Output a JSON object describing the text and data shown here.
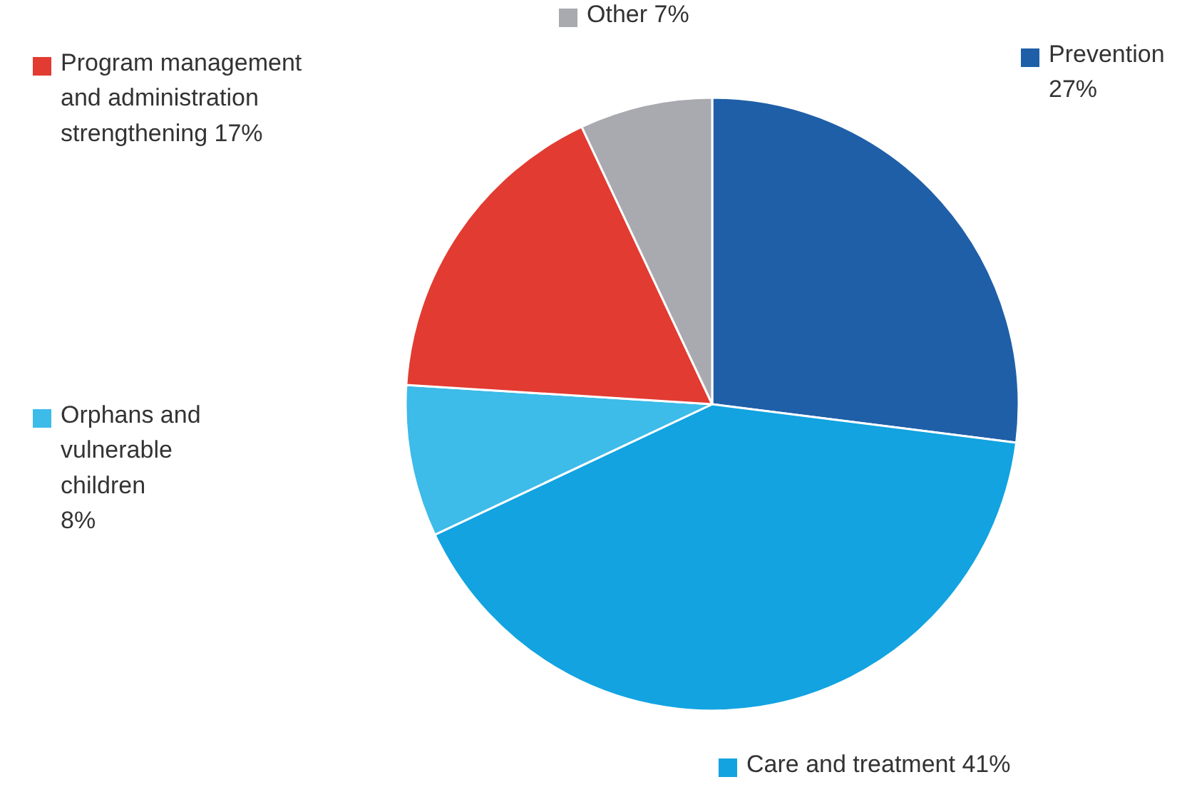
{
  "chart_data": {
    "type": "pie",
    "categories": [
      "Prevention",
      "Care and treatment",
      "Orphans and\nvulnerable\nchildren",
      "Program management\nand administration\nstrengthening",
      "Other"
    ],
    "values": [
      27,
      41,
      8,
      17,
      7
    ],
    "value_labels": [
      "27%",
      "41%",
      "8%",
      "17%",
      "7%"
    ],
    "colors": [
      "#1f5fa8",
      "#12a3e0",
      "#3dbbe9",
      "#e23b32",
      "#a9a9b0"
    ],
    "legend": "top left"
  }
}
